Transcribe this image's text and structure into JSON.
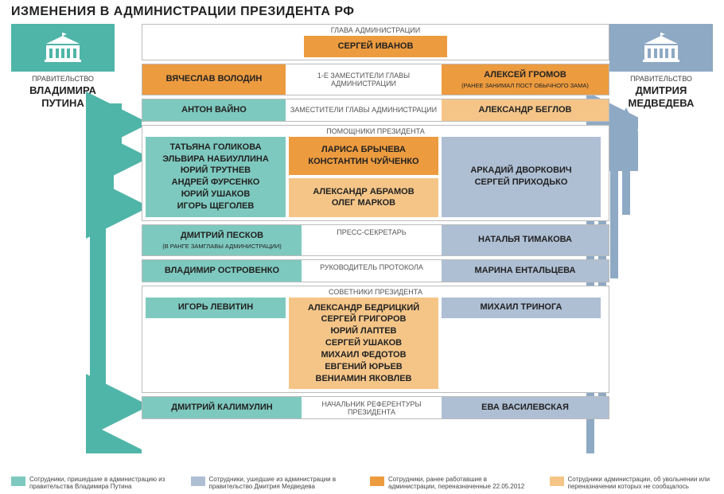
{
  "title": "ИЗМЕНЕНИЯ В АДМИНИСТРАЦИИ ПРЕЗИДЕНТА РФ",
  "colors": {
    "teal": "#7ec9bf",
    "teal_dark": "#4fb5a8",
    "orange_dark": "#ed9b3f",
    "orange_light": "#f5c588",
    "blue": "#aebfd4",
    "blue_dark": "#8ea9c4",
    "border": "#bbb"
  },
  "gov_left": {
    "label": "ПРАВИТЕЛЬСТВО",
    "name1": "ВЛАДИМИРА",
    "name2": "ПУТИНА"
  },
  "gov_right": {
    "label": "ПРАВИТЕЛЬСТВО",
    "name1": "ДМИТРИЯ",
    "name2": "МЕДВЕДЕВА"
  },
  "rows": [
    {
      "label": "ГЛАВА АДМИНИСТРАЦИИ",
      "head": {
        "text": "СЕРГЕЙ ИВАНОВ",
        "color": "orange_dark"
      }
    },
    {
      "label": "1-Е ЗАМЕСТИТЕЛИ ГЛАВЫ АДМИНИСТРАЦИИ",
      "left": {
        "text": "ВЯЧЕСЛАВ ВОЛОДИН",
        "color": "orange_dark"
      },
      "right": {
        "text": "АЛЕКСЕЙ ГРОМОВ",
        "sub": "(РАНЕЕ ЗАНИМАЛ ПОСТ ОБЫЧНОГО ЗАМА)",
        "color": "orange_dark"
      }
    },
    {
      "label": "ЗАМЕСТИТЕЛИ ГЛАВЫ АДМИНИСТРАЦИИ",
      "left": {
        "text": "АНТОН ВАЙНО",
        "color": "teal"
      },
      "right": {
        "text": "АЛЕКСАНДР БЕГЛОВ",
        "color": "orange_light"
      }
    },
    {
      "label": "ПОМОЩНИКИ ПРЕЗИДЕНТА",
      "left": {
        "lines": [
          "ТАТЬЯНА ГОЛИКОВА",
          "ЭЛЬВИРА НАБИУЛЛИНА",
          "ЮРИЙ ТРУТНЕВ",
          "АНДРЕЙ ФУРСЕНКО",
          "ЮРИЙ УШАКОВ",
          "ИГОРЬ ЩЕГОЛЕВ"
        ],
        "color": "teal"
      },
      "mid_top": {
        "lines": [
          "ЛАРИСА БРЫЧЕВА",
          "КОНСТАНТИН ЧУЙЧЕНКО"
        ],
        "color": "orange_dark"
      },
      "mid_bot": {
        "lines": [
          "АЛЕКСАНДР АБРАМОВ",
          "ОЛЕГ МАРКОВ"
        ],
        "color": "orange_light"
      },
      "right": {
        "lines": [
          "АРКАДИЙ ДВОРКОВИЧ",
          "СЕРГЕЙ ПРИХОДЬКО"
        ],
        "color": "blue"
      }
    },
    {
      "label": "ПРЕСС-СЕКРЕТАРЬ",
      "left": {
        "text": "ДМИТРИЙ ПЕСКОВ",
        "sub": "(В РАНГЕ ЗАМГЛАВЫ АДМИНИСТРАЦИИ)",
        "color": "teal"
      },
      "right": {
        "text": "НАТАЛЬЯ ТИМАКОВА",
        "color": "blue"
      }
    },
    {
      "label": "РУКОВОДИТЕЛЬ ПРОТОКОЛА",
      "left": {
        "text": "ВЛАДИМИР ОСТРОВЕНКО",
        "color": "teal"
      },
      "right": {
        "text": "МАРИНА ЕНТАЛЬЦЕВА",
        "color": "blue"
      }
    },
    {
      "label": "СОВЕТНИКИ ПРЕЗИДЕНТА",
      "left": {
        "text": "ИГОРЬ ЛЕВИТИН",
        "color": "teal"
      },
      "mid": {
        "lines": [
          "АЛЕКСАНДР БЕДРИЦКИЙ",
          "СЕРГЕЙ ГРИГОРОВ",
          "ЮРИЙ ЛАПТЕВ",
          "СЕРГЕЙ УШАКОВ",
          "МИХАИЛ ФЕДОТОВ",
          "ЕВГЕНИЙ ЮРЬЕВ",
          "ВЕНИАМИН ЯКОВЛЕВ"
        ],
        "color": "orange_light"
      },
      "right": {
        "text": "МИХАИЛ ТРИНОГА",
        "color": "blue"
      }
    },
    {
      "label": "НАЧАЛЬНИК РЕФЕРЕНТУРЫ ПРЕЗИДЕНТА",
      "left": {
        "text": "ДМИТРИЙ КАЛИМУЛИН",
        "color": "teal"
      },
      "right": {
        "text": "ЕВА ВАСИЛЕВСКАЯ",
        "color": "blue"
      }
    }
  ],
  "legend": [
    {
      "color": "teal",
      "text": "Сотрудники, пришедшие в администрацию из правительства Владимира Путина"
    },
    {
      "color": "blue",
      "text": "Сотрудники, ушедшие из администрации в правительство Дмитрия Медведева"
    },
    {
      "color": "orange_dark",
      "text": "Сотрудники, ранее работавшие в администрации, переназначенные 22.05.2012"
    },
    {
      "color": "orange_light",
      "text": "Сотрудники администрации, об увольнении или переназначении которых не сообщалось"
    }
  ]
}
